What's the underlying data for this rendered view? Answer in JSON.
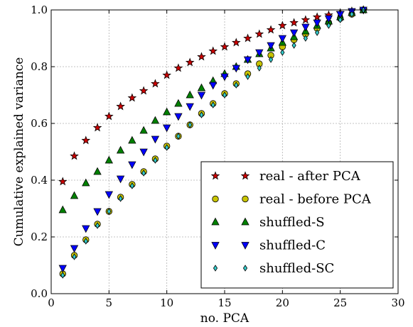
{
  "chart_data": {
    "type": "scatter",
    "title": "",
    "xlabel": "no. PCA",
    "ylabel": "Cumulative explained variance",
    "xlim": [
      0,
      30
    ],
    "ylim": [
      0,
      1.0
    ],
    "x_ticks": [
      0,
      5,
      10,
      15,
      20,
      25,
      30
    ],
    "y_ticks": [
      0.0,
      0.2,
      0.4,
      0.6,
      0.8,
      1.0
    ],
    "x_tick_labels": [
      "0",
      "5",
      "10",
      "15",
      "20",
      "25",
      "30"
    ],
    "y_tick_labels": [
      "0.0",
      "0.2",
      "0.4",
      "0.6",
      "0.8",
      "1.0"
    ],
    "grid": true,
    "legend_position": "lower-right",
    "x": [
      1,
      2,
      3,
      4,
      5,
      6,
      7,
      8,
      9,
      10,
      11,
      12,
      13,
      14,
      15,
      16,
      17,
      18,
      19,
      20,
      21,
      22,
      23,
      24,
      25,
      26,
      27
    ],
    "series": [
      {
        "name": "real - after PCA",
        "marker": "star",
        "color": "#cc0000",
        "values": [
          0.395,
          0.485,
          0.54,
          0.585,
          0.625,
          0.66,
          0.69,
          0.715,
          0.74,
          0.77,
          0.795,
          0.815,
          0.835,
          0.855,
          0.87,
          0.885,
          0.9,
          0.915,
          0.93,
          0.945,
          0.955,
          0.965,
          0.975,
          0.982,
          0.99,
          0.996,
          1.0
        ]
      },
      {
        "name": "real - before PCA",
        "marker": "circle",
        "color": "#c8c400",
        "values": [
          0.07,
          0.135,
          0.19,
          0.245,
          0.29,
          0.34,
          0.385,
          0.43,
          0.475,
          0.52,
          0.555,
          0.595,
          0.635,
          0.67,
          0.705,
          0.74,
          0.775,
          0.81,
          0.84,
          0.87,
          0.895,
          0.915,
          0.935,
          0.955,
          0.97,
          0.985,
          1.0
        ]
      },
      {
        "name": "shuffled-S",
        "marker": "triangle-up",
        "color": "#008000",
        "values": [
          0.295,
          0.345,
          0.39,
          0.43,
          0.47,
          0.505,
          0.54,
          0.575,
          0.61,
          0.64,
          0.67,
          0.7,
          0.725,
          0.75,
          0.775,
          0.8,
          0.825,
          0.845,
          0.865,
          0.885,
          0.905,
          0.925,
          0.945,
          0.96,
          0.975,
          0.99,
          1.0
        ]
      },
      {
        "name": "shuffled-C",
        "marker": "triangle-down",
        "color": "#0000ff",
        "values": [
          0.09,
          0.16,
          0.23,
          0.29,
          0.35,
          0.405,
          0.455,
          0.5,
          0.545,
          0.585,
          0.625,
          0.66,
          0.7,
          0.735,
          0.765,
          0.795,
          0.825,
          0.85,
          0.875,
          0.9,
          0.92,
          0.94,
          0.955,
          0.97,
          0.985,
          0.995,
          1.0
        ]
      },
      {
        "name": "shuffled-SC",
        "marker": "diamond",
        "color": "#33cccc",
        "values": [
          0.065,
          0.13,
          0.185,
          0.24,
          0.29,
          0.335,
          0.38,
          0.425,
          0.47,
          0.515,
          0.555,
          0.595,
          0.63,
          0.665,
          0.7,
          0.735,
          0.765,
          0.795,
          0.825,
          0.85,
          0.875,
          0.9,
          0.92,
          0.945,
          0.965,
          0.985,
          1.0
        ]
      }
    ]
  }
}
